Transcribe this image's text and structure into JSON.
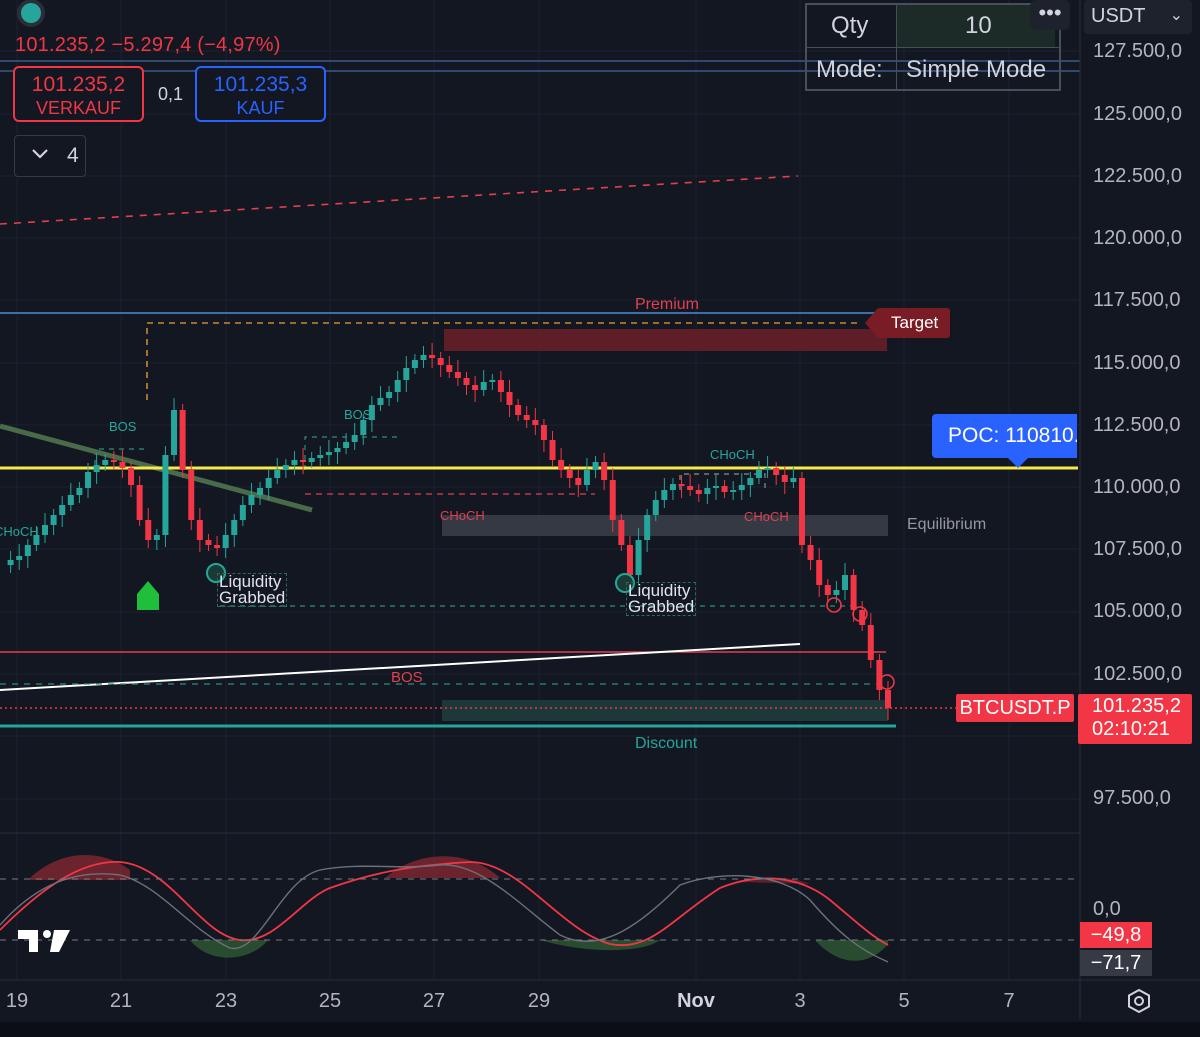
{
  "header": {
    "price_change": "101.235,2  −5.297,4 (−4,97%)",
    "sell_price": "101.235,2",
    "sell_label": "VERKAUF",
    "spread": "0,1",
    "buy_price": "101.235,3",
    "buy_label": "KAUF",
    "indicator_count": "4"
  },
  "order_panel": {
    "qty_label": "Qty",
    "qty_value": "10",
    "mode_label": "Mode:",
    "mode_value": "Simple Mode",
    "menu_label": "•••",
    "currency": "USDT",
    "currency_chevron": "⌄"
  },
  "price_axis": {
    "ticks": [
      "127.500,0",
      "125.000,0",
      "122.500,0",
      "120.000,0",
      "117.500,0",
      "115.000,0",
      "112.500,0",
      "110.000,0",
      "107.500,0",
      "105.000,0",
      "102.500,0",
      "97.500,0"
    ],
    "last_price": "101.235,2",
    "countdown": "02:10:21",
    "symbol": "BTCUSDT.P"
  },
  "time_axis": {
    "ticks": [
      "19",
      "21",
      "23",
      "25",
      "27",
      "29",
      "Nov",
      "3",
      "5",
      "7"
    ]
  },
  "annotations": {
    "poc": "POC: 110810.",
    "target": "Target",
    "premium": "Premium",
    "equilibrium": "Equilibrium",
    "discount": "Discount",
    "bos": [
      "BOS",
      "BOS",
      "BOS"
    ],
    "choch": [
      "CHoCH",
      "CHoCH",
      "CHoCH",
      "CHoCH"
    ],
    "liquidity_line1": "Liquidity",
    "liquidity_line2": "Grabbed"
  },
  "oscillator": {
    "zero_label": "0,0",
    "value_red": "−49,8",
    "value_grey": "−71,7"
  },
  "colors": {
    "background": "#131722",
    "up": "#26a69a",
    "down": "#f23645",
    "accent": "#2962ff",
    "poc_line": "#f5e94c"
  },
  "icons": [
    "status-dot-icon",
    "chevron-down-icon",
    "more-icon",
    "tradingview-logo-icon",
    "settings-icon"
  ]
}
